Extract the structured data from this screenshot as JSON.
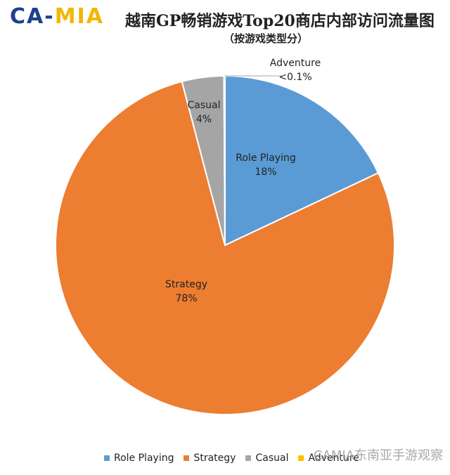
{
  "logo": {
    "part1": "CA",
    "dash": "-",
    "part2": "MIA"
  },
  "header": {
    "title": "越南GP畅销游戏Top20商店内部访问流量图",
    "subtitle": "（按游戏类型分）"
  },
  "watermark": "CAMIA东南亚手游观察",
  "chart_data": {
    "type": "pie",
    "title": "越南GP畅销游戏Top20商店内部访问流量图",
    "subtitle": "（按游戏类型分）",
    "legend_position": "bottom",
    "slices": [
      {
        "name": "Role Playing",
        "value": 18,
        "label": "18%",
        "color": "#5b9bd5"
      },
      {
        "name": "Strategy",
        "value": 78,
        "label": "78%",
        "color": "#ed7d31"
      },
      {
        "name": "Casual",
        "value": 4,
        "label": "4%",
        "color": "#a5a5a5"
      },
      {
        "name": "Adventure",
        "value": 0.1,
        "label": "<0.1%",
        "color": "#ffc000"
      }
    ]
  }
}
